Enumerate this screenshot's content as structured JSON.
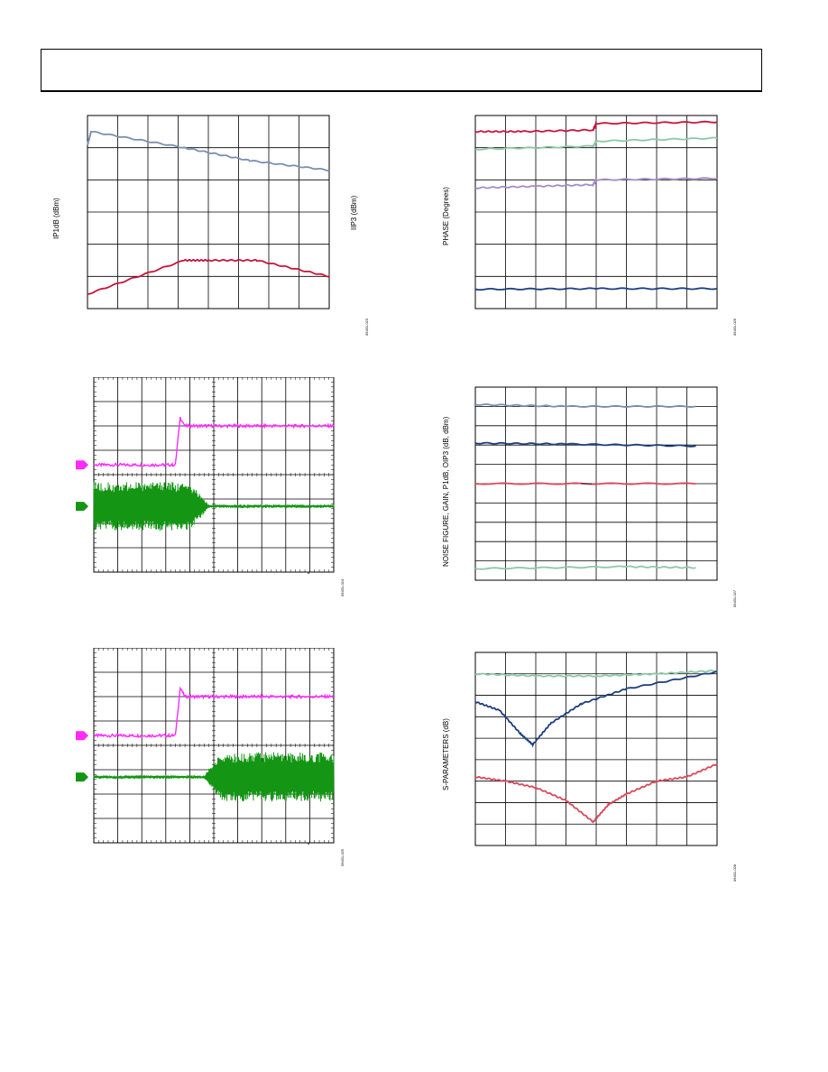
{
  "page": {
    "header_text": ""
  },
  "figures": {
    "fig1": {
      "y_left_label": "IP1dB (dBm)",
      "y_right_label": "IIP3 (dBm)",
      "fig_num": "09431-023"
    },
    "fig2": {
      "y_label": "PHASE (Degrees)",
      "fig_num": "09431-026"
    },
    "fig3": {
      "fig_num": "09431-024"
    },
    "fig4": {
      "y_label": "NOISE FIGURE, GAIN, P1dB, OIP3 (dB, dBm)",
      "fig_num": "09431-027"
    },
    "fig5": {
      "fig_num": "09431-025"
    },
    "fig6": {
      "y_label": "S-PARAMETERS (dB)",
      "fig_num": "09431-028"
    }
  },
  "colors": {
    "blue_gray": "#7a8fb0",
    "crimson": "#c8143c",
    "mint": "#8fc7a8",
    "lavender": "#a98bc8",
    "navy": "#1c3f7c",
    "magenta": "#ff2bff",
    "green": "#149614",
    "pink_red": "#d94a5a",
    "grid": "#000000"
  },
  "chart_data": [
    {
      "id": "fig1",
      "type": "line",
      "xlim": [
        0,
        10
      ],
      "ylim": [
        0,
        6
      ],
      "series": [
        {
          "color_key": "blue_gray",
          "x": [
            0,
            0.15,
            4,
            6.7,
            10
          ],
          "y": [
            5.1,
            5.5,
            5.0,
            4.6,
            4.3
          ]
        },
        {
          "color_key": "crimson",
          "x": [
            0,
            4,
            5,
            7,
            10
          ],
          "y": [
            0.45,
            1.5,
            1.5,
            1.5,
            1.0
          ]
        }
      ]
    },
    {
      "id": "fig2",
      "type": "line",
      "xlim": [
        0,
        8
      ],
      "ylim": [
        0,
        6
      ],
      "series": [
        {
          "color_key": "crimson",
          "x": [
            0,
            1.5,
            3.9,
            4.0,
            8
          ],
          "y": [
            5.5,
            5.5,
            5.55,
            5.75,
            5.8
          ]
        },
        {
          "color_key": "mint",
          "x": [
            0,
            3.9,
            4.0,
            8
          ],
          "y": [
            4.95,
            5.05,
            5.2,
            5.3
          ]
        },
        {
          "color_key": "lavender",
          "x": [
            0,
            2,
            3.9,
            4.0,
            8
          ],
          "y": [
            3.75,
            3.8,
            3.85,
            4.0,
            4.05
          ]
        },
        {
          "color_key": "navy",
          "x": [
            0,
            4,
            8
          ],
          "y": [
            0.6,
            0.62,
            0.62
          ]
        }
      ]
    },
    {
      "id": "fig3",
      "type": "line",
      "xlim": [
        0,
        10
      ],
      "ylim": [
        0,
        8
      ],
      "series": [
        {
          "color_key": "magenta",
          "kind": "step"
        },
        {
          "color_key": "green",
          "kind": "burst_then_flat"
        }
      ]
    },
    {
      "id": "fig4",
      "type": "line",
      "xlim": [
        0,
        8
      ],
      "ylim": [
        0,
        10
      ],
      "series": [
        {
          "color_key": "blue_gray",
          "x": [
            0,
            3,
            7.3
          ],
          "y": [
            9.1,
            9.0,
            9.0
          ]
        },
        {
          "color_key": "navy",
          "x": [
            0,
            3,
            7.3
          ],
          "y": [
            7.1,
            7.05,
            6.95
          ]
        },
        {
          "color_key": "pink_red",
          "x": [
            0,
            7.3
          ],
          "y": [
            5.0,
            5.0
          ]
        },
        {
          "color_key": "mint",
          "x": [
            0,
            5,
            7.3
          ],
          "y": [
            0.6,
            0.7,
            0.65
          ]
        }
      ]
    },
    {
      "id": "fig5",
      "type": "line",
      "xlim": [
        0,
        10
      ],
      "ylim": [
        0,
        8
      ],
      "series": [
        {
          "color_key": "magenta",
          "kind": "step"
        },
        {
          "color_key": "green",
          "kind": "flat_then_burst"
        }
      ]
    },
    {
      "id": "fig6",
      "type": "line",
      "xlim": [
        0,
        8
      ],
      "ylim": [
        0,
        9
      ],
      "series": [
        {
          "color_key": "mint",
          "x": [
            0,
            2,
            4,
            6,
            8
          ],
          "y": [
            8.0,
            7.9,
            7.9,
            8.0,
            8.15
          ]
        },
        {
          "color_key": "navy",
          "x": [
            0,
            0.8,
            1.5,
            1.9,
            2.5,
            3.5,
            5,
            8
          ],
          "y": [
            6.7,
            6.3,
            5.2,
            4.7,
            5.7,
            6.6,
            7.3,
            8.1
          ]
        },
        {
          "color_key": "pink_red",
          "x": [
            0,
            1,
            2,
            3,
            3.9,
            4.4,
            5,
            6,
            7,
            8
          ],
          "y": [
            3.2,
            3.0,
            2.7,
            2.1,
            1.1,
            1.9,
            2.4,
            3.0,
            3.2,
            3.8
          ]
        }
      ]
    }
  ]
}
